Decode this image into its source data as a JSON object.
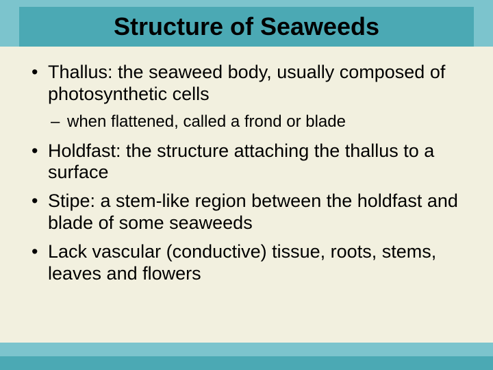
{
  "colors": {
    "slide_background": "#7cc4cd",
    "title_bar_background": "#4ba9b4",
    "content_background": "#f2f0df",
    "footer_accent": "#4ba9b4",
    "text_color": "#000000"
  },
  "title": {
    "text": "Structure of Seaweeds",
    "fontsize": 36,
    "fontweight": "bold"
  },
  "body": {
    "fontsize_main": 27,
    "fontsize_sub": 24,
    "bullets": [
      {
        "text": "Thallus: the seaweed body, usually composed of photosynthetic cells",
        "sub": [
          {
            "text": "when flattened, called a frond or blade"
          }
        ]
      },
      {
        "text": "Holdfast: the structure attaching the thallus to a surface"
      },
      {
        "text": "Stipe: a stem-like region between the holdfast and blade of some seaweeds"
      },
      {
        "text": "Lack vascular (conductive) tissue, roots, stems, leaves and flowers"
      }
    ]
  }
}
